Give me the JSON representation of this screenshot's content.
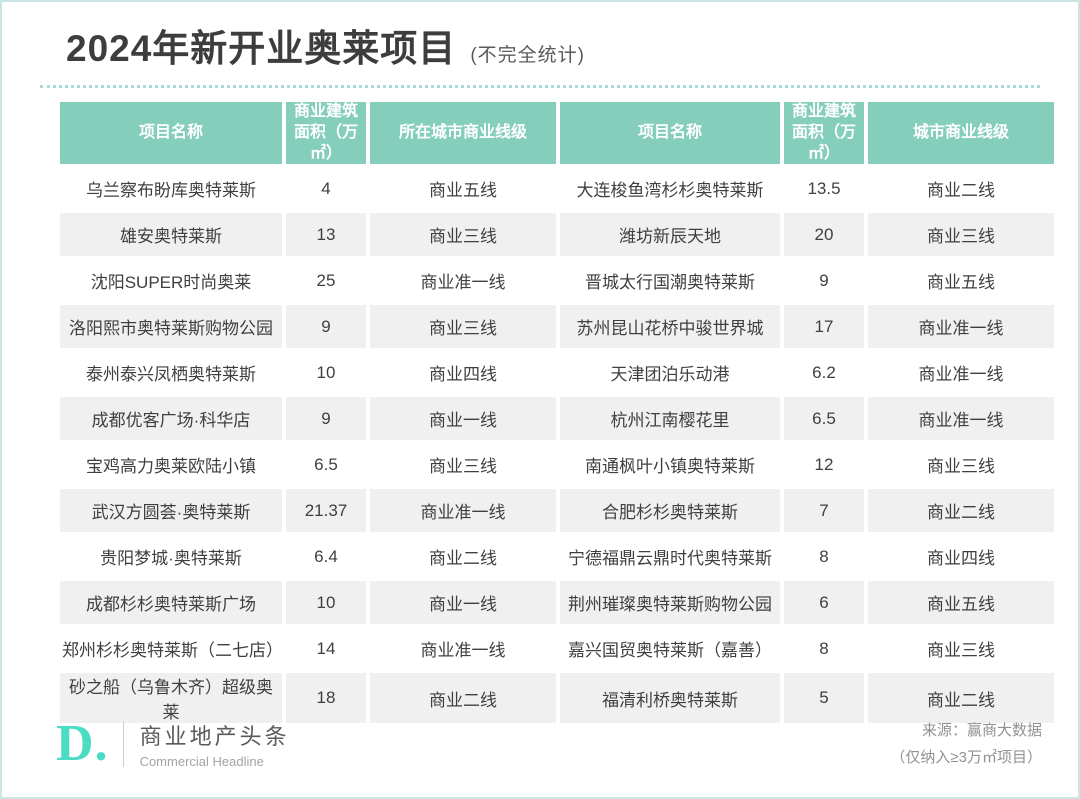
{
  "title": {
    "main": "2024年新开业奥莱项目",
    "note": "(不完全统计)"
  },
  "chart_data": {
    "type": "table",
    "title": "2024年新开业奥莱项目(不完全统计)",
    "columns": [
      "项目名称",
      "商业建筑面积（万㎡）",
      "所在城市商业线级",
      "项目名称",
      "商业建筑面积（万㎡）",
      "城市商业线级"
    ],
    "rows": [
      [
        "乌兰察布盼库奥特莱斯",
        "4",
        "商业五线",
        "大连梭鱼湾杉杉奥特莱斯",
        "13.5",
        "商业二线"
      ],
      [
        "雄安奥特莱斯",
        "13",
        "商业三线",
        "潍坊新辰天地",
        "20",
        "商业三线"
      ],
      [
        "沈阳SUPER时尚奥莱",
        "25",
        "商业准一线",
        "晋城太行国潮奥特莱斯",
        "9",
        "商业五线"
      ],
      [
        "洛阳熙市奥特莱斯购物公园",
        "9",
        "商业三线",
        "苏州昆山花桥中骏世界城",
        "17",
        "商业准一线"
      ],
      [
        "泰州泰兴凤栖奥特莱斯",
        "10",
        "商业四线",
        "天津团泊乐动港",
        "6.2",
        "商业准一线"
      ],
      [
        "成都优客广场·科华店",
        "9",
        "商业一线",
        "杭州江南樱花里",
        "6.5",
        "商业准一线"
      ],
      [
        "宝鸡高力奥莱欧陆小镇",
        "6.5",
        "商业三线",
        "南通枫叶小镇奥特莱斯",
        "12",
        "商业三线"
      ],
      [
        "武汉方圆荟·奥特莱斯",
        "21.37",
        "商业准一线",
        "合肥杉杉奥特莱斯",
        "7",
        "商业二线"
      ],
      [
        "贵阳梦城·奥特莱斯",
        "6.4",
        "商业二线",
        "宁德福鼎云鼎时代奥特莱斯",
        "8",
        "商业四线"
      ],
      [
        "成都杉杉奥特莱斯广场",
        "10",
        "商业一线",
        "荆州璀璨奥特莱斯购物公园",
        "6",
        "商业五线"
      ],
      [
        "郑州杉杉奥特莱斯（二七店）",
        "14",
        "商业准一线",
        "嘉兴国贸奥特莱斯（嘉善）",
        "8",
        "商业三线"
      ],
      [
        "砂之船（乌鲁木齐）超级奥莱",
        "18",
        "商业二线",
        "福清利桥奥特莱斯",
        "5",
        "商业二线"
      ]
    ]
  },
  "footer": {
    "logo": "D.",
    "brand_cn": "商业地产头条",
    "brand_en": "Commercial Headline",
    "source_line1": "来源：赢商大数据",
    "source_line2": "（仅纳入≥3万㎡项目）"
  },
  "colors": {
    "header_bg": "#85CEBB",
    "stripe_bg": "#F0F0F0",
    "accent": "#4BDCC4",
    "frame_border": "#C9E6E4",
    "dot_color": "#A9DBD8"
  }
}
